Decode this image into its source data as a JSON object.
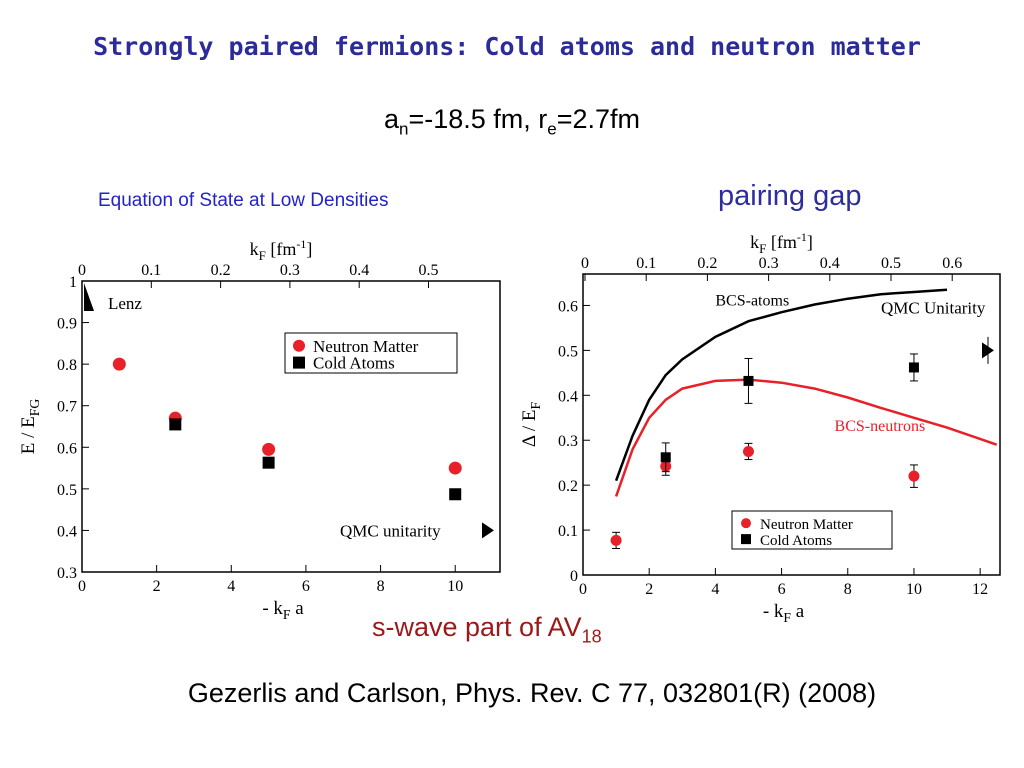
{
  "slide": {
    "title": "Strongly paired fermions: Cold atoms and neutron matter",
    "params": {
      "a_main": "a",
      "a_sub": "n",
      "a_rest": "=-18.5 fm, r",
      "r_sub": "e",
      "r_rest": "=2.7fm"
    },
    "pairing_gap_label": "pairing gap",
    "swave": {
      "main": "s-wave part of AV",
      "sub": "18"
    },
    "citation": "Gezerlis and Carlson, Phys. Rev. C 77, 032801(R) (2008)"
  },
  "colors": {
    "title": "#2b2b9a",
    "heading": "#2323c8",
    "red": "#e8202a",
    "black": "#000000",
    "swave": "#9a1a1a"
  },
  "chart_data": [
    {
      "type": "scatter",
      "title": "Equation of State at Low Densities",
      "xlabel": "- k_F a",
      "ylabel": "E / E_FG",
      "top_axis_label": "k_F [fm^-1]",
      "xlim": [
        0,
        11.2
      ],
      "ylim": [
        0.3,
        1.0
      ],
      "x_ticks": [
        "0",
        "2",
        "4",
        "6",
        "8",
        "10"
      ],
      "y_ticks": [
        "0.3",
        "0.4",
        "0.5",
        "0.6",
        "0.7",
        "0.8",
        "0.9",
        "1"
      ],
      "top_ticks": [
        "0",
        "0.1",
        "0.2",
        "0.3",
        "0.4",
        "0.5"
      ],
      "legend_position": "top-right",
      "series": [
        {
          "name": "Neutron Matter",
          "marker": "circle",
          "color": "#e8202a",
          "x": [
            1.0,
            2.5,
            5.0,
            10.0
          ],
          "y": [
            0.8,
            0.67,
            0.595,
            0.55
          ]
        },
        {
          "name": "Cold Atoms",
          "marker": "square",
          "color": "#000000",
          "x": [
            2.5,
            5.0,
            10.0
          ],
          "y": [
            0.655,
            0.563,
            0.487
          ]
        }
      ],
      "annotations": [
        {
          "text": "Lenz",
          "kind": "line-label"
        },
        {
          "text": "QMC unitarity",
          "kind": "arrow",
          "y": 0.4
        }
      ]
    },
    {
      "type": "line",
      "title": "",
      "xlabel": "- k_F a",
      "ylabel": "Δ / E_F",
      "top_axis_label": "k_F [fm^-1]",
      "xlim": [
        0,
        12.6
      ],
      "ylim": [
        0,
        0.67
      ],
      "x_ticks": [
        "0",
        "2",
        "4",
        "6",
        "8",
        "10",
        "12"
      ],
      "y_ticks": [
        "0",
        "0.1",
        "0.2",
        "0.3",
        "0.4",
        "0.5",
        "0.6"
      ],
      "top_ticks": [
        "0",
        "0.1",
        "0.2",
        "0.3",
        "0.4",
        "0.5",
        "0.6"
      ],
      "legend_position": "bottom-center",
      "curves": [
        {
          "label": "BCS-atoms",
          "color": "#000000",
          "x": [
            1.0,
            1.5,
            2.0,
            2.5,
            3.0,
            4.0,
            5.0,
            6.0,
            7.0,
            8.0,
            9.0,
            10.0,
            11.0
          ],
          "y": [
            0.21,
            0.31,
            0.39,
            0.445,
            0.48,
            0.53,
            0.565,
            0.585,
            0.602,
            0.615,
            0.625,
            0.63,
            0.635
          ]
        },
        {
          "label": "BCS-neutrons",
          "color": "#e8202a",
          "x": [
            1.0,
            1.5,
            2.0,
            2.5,
            3.0,
            4.0,
            5.0,
            6.0,
            7.0,
            8.0,
            9.0,
            10.0,
            11.0,
            12.0,
            12.5
          ],
          "y": [
            0.175,
            0.28,
            0.35,
            0.39,
            0.415,
            0.432,
            0.435,
            0.428,
            0.415,
            0.395,
            0.372,
            0.35,
            0.328,
            0.303,
            0.29
          ]
        }
      ],
      "series": [
        {
          "name": "Neutron Matter",
          "marker": "circle",
          "color": "#e8202a",
          "x": [
            1.0,
            2.5,
            5.0,
            10.0
          ],
          "y": [
            0.077,
            0.242,
            0.275,
            0.22
          ],
          "err": [
            0.018,
            0.02,
            0.018,
            0.025
          ]
        },
        {
          "name": "Cold Atoms",
          "marker": "square",
          "color": "#000000",
          "x": [
            2.5,
            5.0,
            10.0
          ],
          "y": [
            0.262,
            0.432,
            0.462
          ],
          "err": [
            0.032,
            0.05,
            0.03
          ]
        }
      ],
      "annotations": [
        {
          "text": "QMC Unitarity",
          "kind": "arrow",
          "y": 0.5,
          "err": 0.03
        }
      ]
    }
  ]
}
